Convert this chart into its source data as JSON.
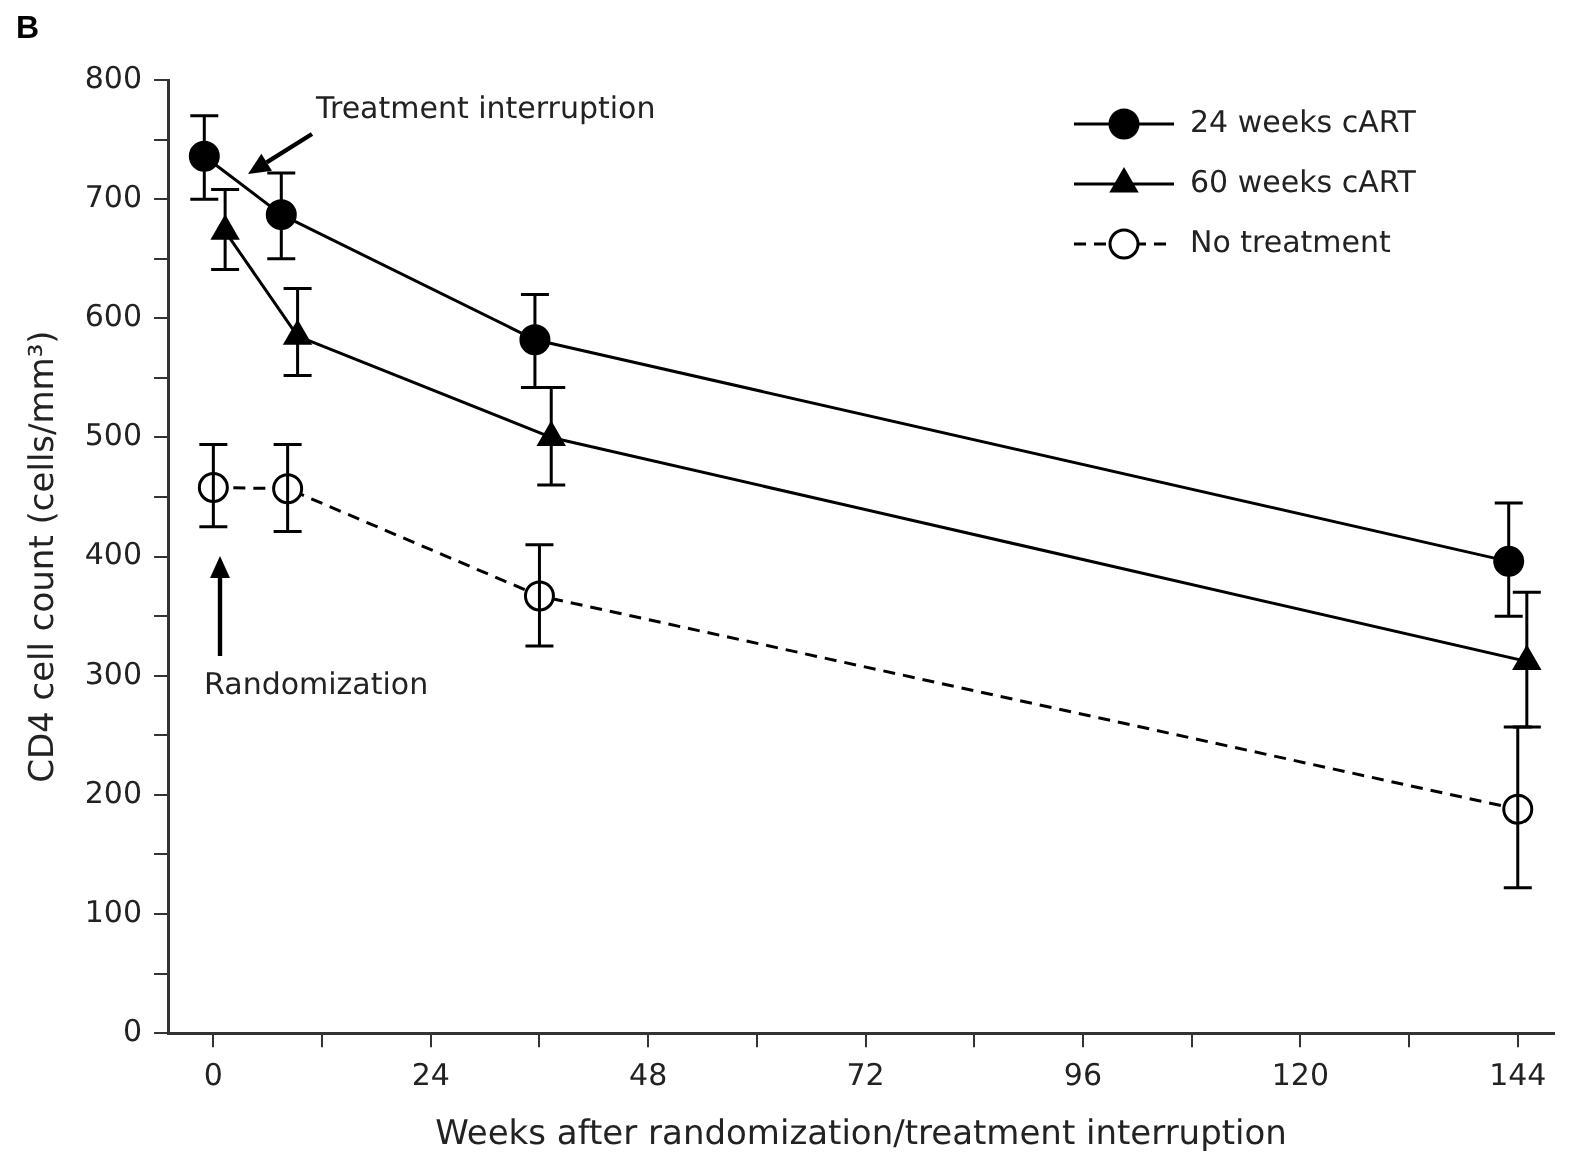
{
  "chart_data": {
    "type": "line",
    "xlabel": "Weeks after randomization/treatment interruption",
    "ylabel": "CD4 cell count (cells/mm³)",
    "xlim": [
      -5,
      148
    ],
    "ylim": [
      0,
      800
    ],
    "xticks": [
      0,
      {
        "value": 12,
        "label": null
      },
      24,
      {
        "value": 36,
        "label": null
      },
      48,
      {
        "value": 60,
        "label": null
      },
      72,
      {
        "value": 84,
        "label": null
      },
      96,
      {
        "value": 108,
        "label": null
      },
      120,
      {
        "value": 132,
        "label": null
      },
      144
    ],
    "yticks": [
      0,
      {
        "value": 50,
        "label": null
      },
      100,
      {
        "value": 150,
        "label": null
      },
      200,
      {
        "value": 250,
        "label": null
      },
      300,
      {
        "value": 350,
        "label": null
      },
      400,
      {
        "value": 450,
        "label": null
      },
      500,
      {
        "value": 550,
        "label": null
      },
      600,
      {
        "value": 650,
        "label": null
      },
      700,
      {
        "value": 750,
        "label": null
      },
      800
    ],
    "series": [
      {
        "name": "24 weeks cART",
        "color": "#000000",
        "marker": "circle",
        "line_style": "solid",
        "x": [
          -1,
          7.5,
          35.5,
          143
        ],
        "values": [
          736,
          687,
          582,
          396
        ],
        "errors": [
          [
            700,
            770
          ],
          [
            650,
            722
          ],
          [
            542,
            620
          ],
          [
            350,
            445
          ]
        ]
      },
      {
        "name": "60 weeks cART",
        "color": "#000000",
        "marker": "triangle",
        "line_style": "solid",
        "x": [
          1.3,
          9.3,
          37.3,
          145
        ],
        "values": [
          673,
          585,
          500,
          312
        ],
        "errors": [
          [
            641,
            708
          ],
          [
            552,
            625
          ],
          [
            460,
            542
          ],
          [
            257,
            370
          ]
        ]
      },
      {
        "name": "No treatment",
        "color": "#000000",
        "marker": "circle",
        "line_style": "dashed",
        "x": [
          0,
          8.2,
          36,
          144
        ],
        "values": [
          458,
          457,
          367,
          188
        ],
        "errors": [
          [
            425,
            494
          ],
          [
            421,
            494
          ],
          [
            325,
            410
          ],
          [
            122,
            257
          ]
        ]
      }
    ],
    "legend": "top right",
    "grid": false,
    "annotations": [
      "B",
      "Treatment interruption",
      "Randomization"
    ]
  }
}
